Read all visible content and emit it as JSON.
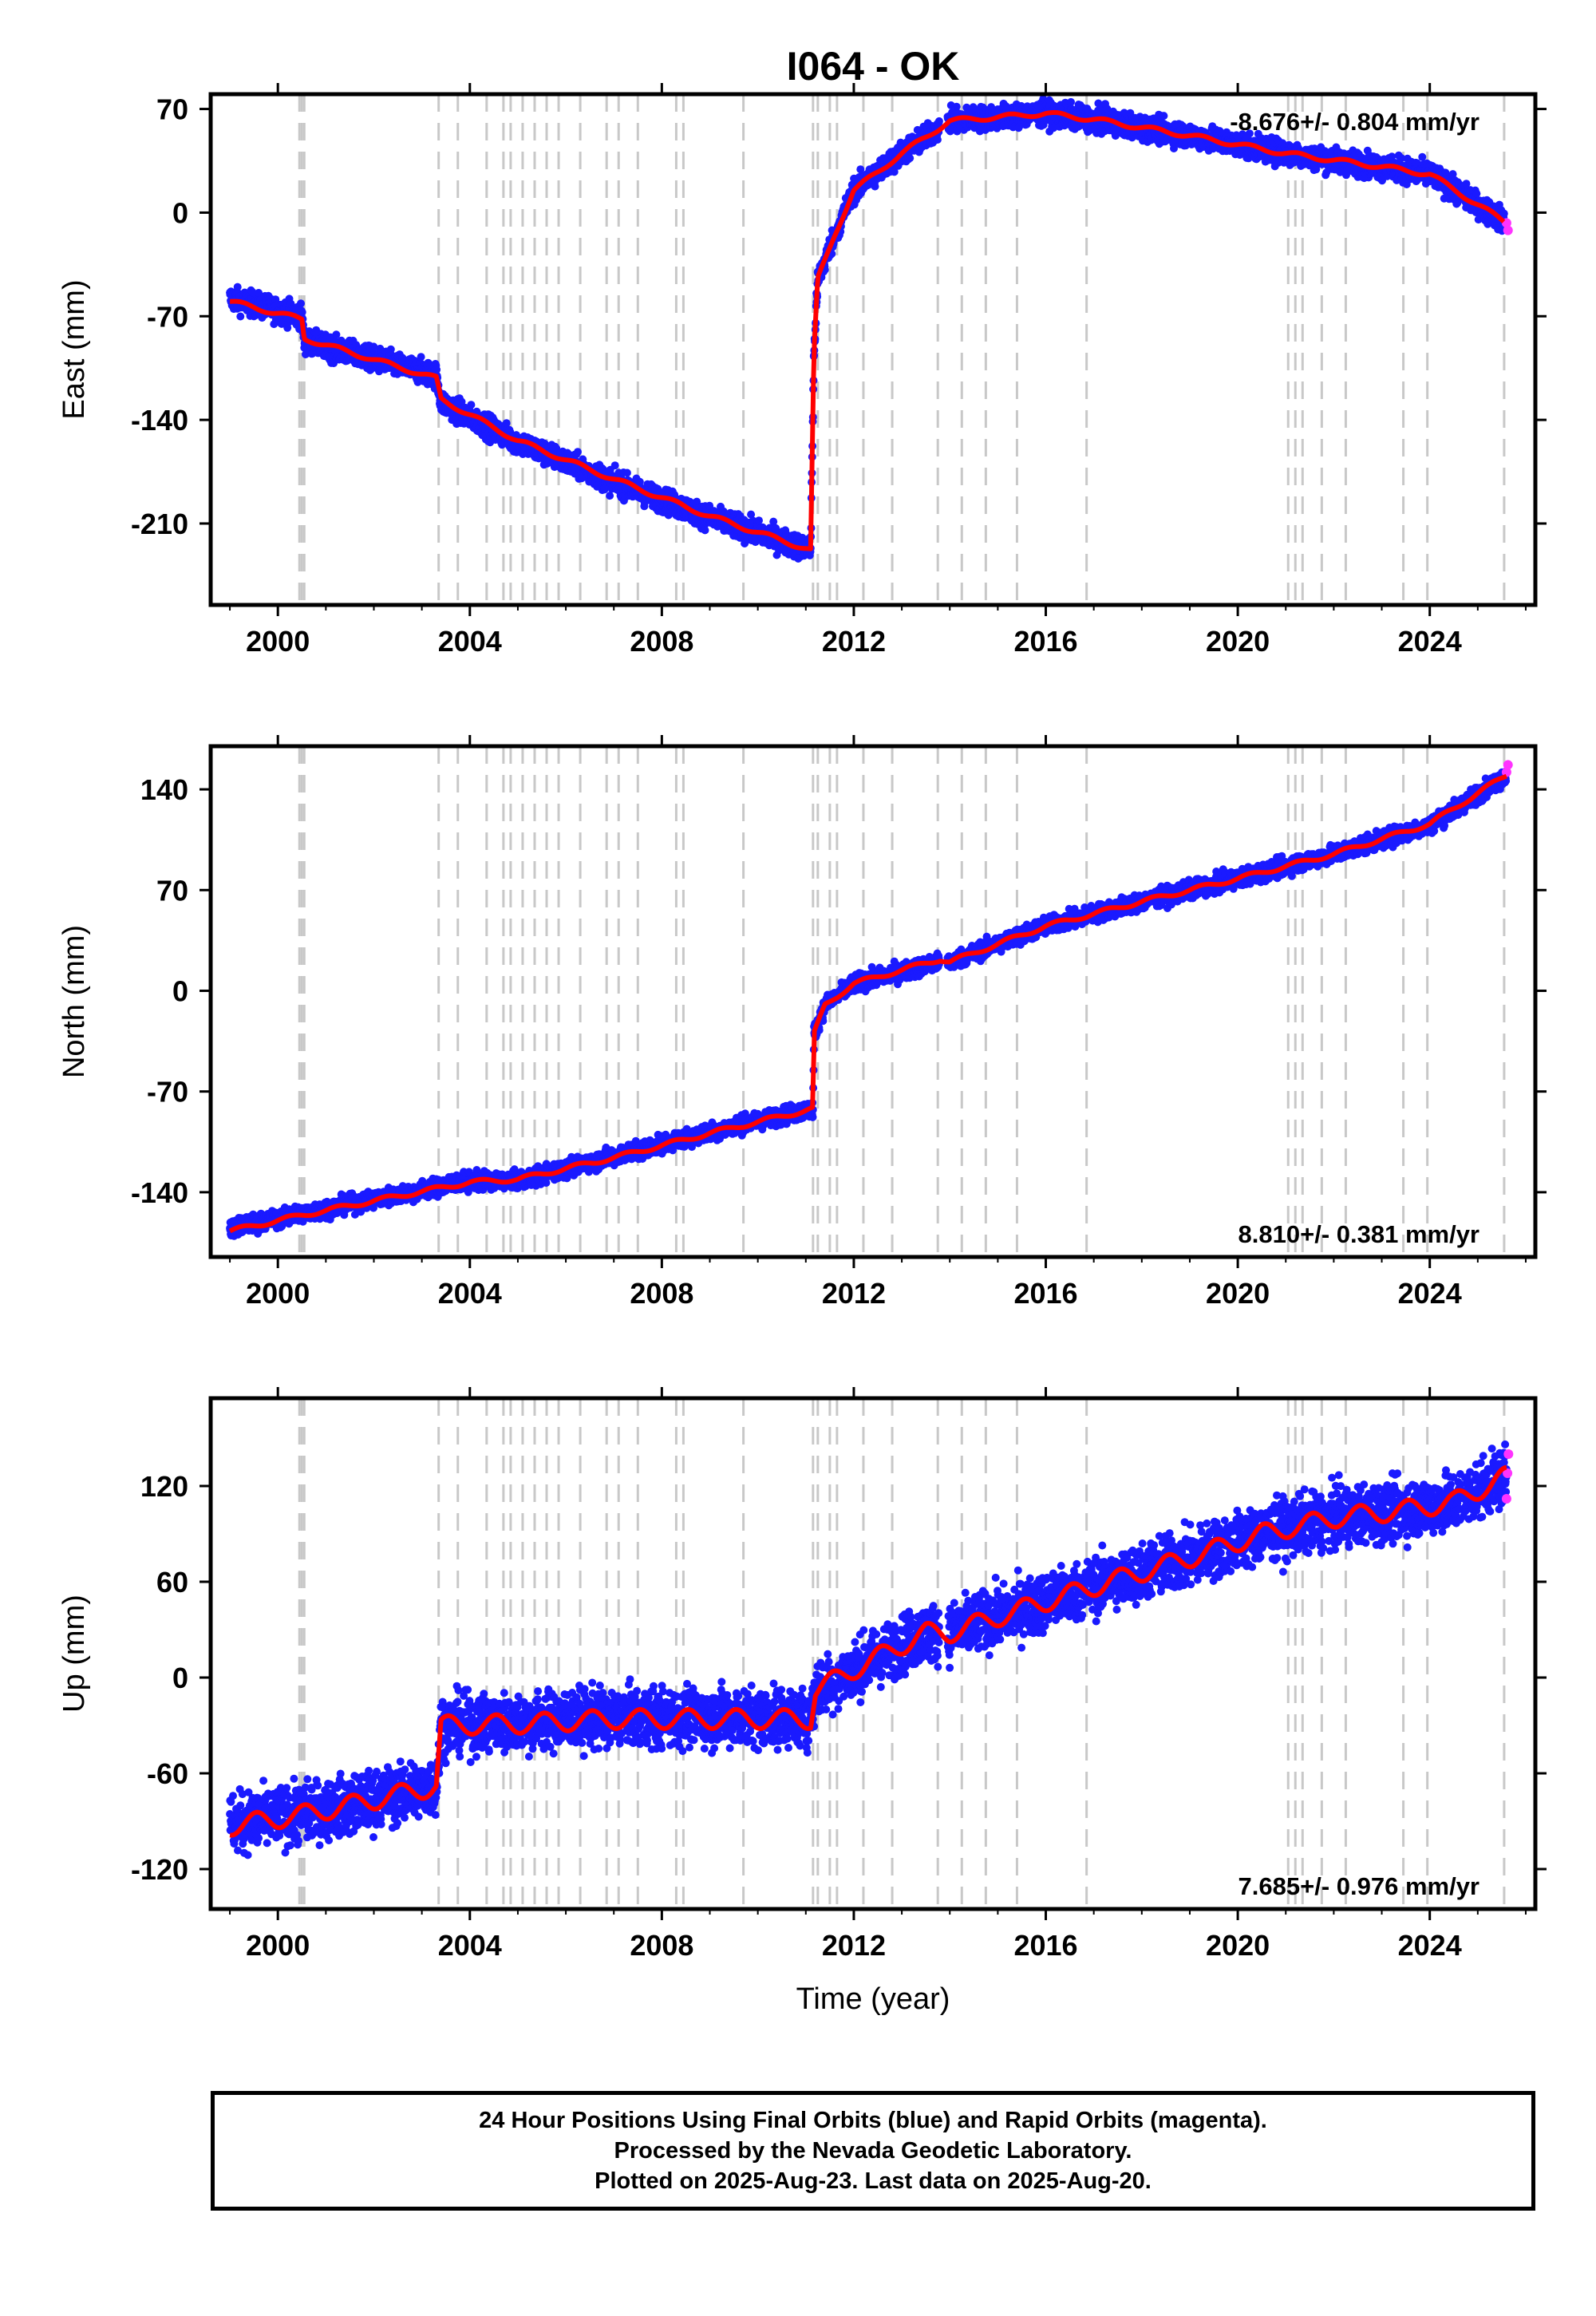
{
  "title": "I064 - OK",
  "xlabel": "Time (year)",
  "colors": {
    "final": "#1a1aff",
    "rapid": "#ff33ff",
    "model": "#ff0000",
    "steps": "#c8c8c8"
  },
  "footer": {
    "line1": "24 Hour Positions Using Final Orbits (blue) and Rapid Orbits (magenta).",
    "line2": "Processed by the Nevada Geodetic Laboratory.",
    "line3": "Plotted on 2025-Aug-23. Last data on 2025-Aug-20."
  },
  "chart_data": [
    {
      "type": "scatter",
      "component": "east",
      "ylabel": "East (mm)",
      "xlim": [
        1998.6,
        2026.2
      ],
      "ylim": [
        -265,
        80
      ],
      "xticks": [
        "2000",
        "2004",
        "2008",
        "2012",
        "2016",
        "2020",
        "2024"
      ],
      "yticks": [
        "70",
        "0",
        "-70",
        "-140",
        "-210"
      ],
      "rate_label": "-8.676+/- 0.804 mm/yr",
      "rate_position": "top-right",
      "step_epochs": [
        2000.45,
        2000.5,
        2000.55,
        2003.35,
        2003.75,
        2004.35,
        2004.7,
        2004.85,
        2005.1,
        2005.35,
        2005.6,
        2005.85,
        2006.3,
        2006.85,
        2007.1,
        2007.5,
        2008.3,
        2008.45,
        2009.7,
        2011.15,
        2011.25,
        2011.5,
        2011.65,
        2012.2,
        2012.8,
        2013.75,
        2014.25,
        2014.75,
        2015.4,
        2016.85,
        2021.05,
        2021.2,
        2021.35,
        2021.75,
        2022.25,
        2023.45,
        2023.95,
        2025.55
      ],
      "series": [
        {
          "name": "Final Orbits",
          "x": [
            1999.0,
            2000.5,
            2000.55,
            2003.3,
            2003.4,
            2005.0,
            2007.0,
            2009.0,
            2011.1,
            2011.17,
            2011.25,
            2011.6,
            2012.0,
            2013.0,
            2014.0,
            2016.0,
            2017.0,
            2019.0,
            2021.0,
            2023.0,
            2024.0,
            2025.55
          ],
          "y": [
            -58,
            -70,
            -87,
            -110,
            -128,
            -155,
            -182,
            -206,
            -228,
            -95,
            -45,
            -15,
            15,
            40,
            62,
            67,
            63,
            52,
            40,
            31,
            26,
            -6
          ]
        },
        {
          "name": "Rapid Orbits",
          "x": [
            2025.6,
            2025.63
          ],
          "y": [
            -7,
            -12
          ]
        },
        {
          "name": "Model",
          "x": [
            1999.0,
            2000.5,
            2000.55,
            2003.3,
            2003.4,
            2005.0,
            2007.0,
            2009.0,
            2011.1,
            2011.17,
            2011.25,
            2011.6,
            2012.0,
            2013.0,
            2014.0,
            2016.0,
            2017.0,
            2019.0,
            2021.0,
            2023.0,
            2024.0,
            2025.55
          ],
          "y": [
            -60,
            -72,
            -85,
            -112,
            -126,
            -154,
            -180,
            -205,
            -228,
            -95,
            -45,
            -15,
            15,
            40,
            62,
            67,
            63,
            52,
            40,
            31,
            26,
            -6
          ]
        }
      ]
    },
    {
      "type": "scatter",
      "component": "north",
      "ylabel": "North (mm)",
      "xlim": [
        1998.6,
        2026.2
      ],
      "ylim": [
        -185,
        170
      ],
      "xticks": [
        "2000",
        "2004",
        "2008",
        "2012",
        "2016",
        "2020",
        "2024"
      ],
      "yticks": [
        "140",
        "70",
        "0",
        "-70",
        "-140"
      ],
      "rate_label": "8.810+/- 0.381 mm/yr",
      "rate_position": "bottom-right",
      "step_epochs": [
        2000.45,
        2000.5,
        2000.55,
        2003.35,
        2003.75,
        2004.35,
        2004.7,
        2004.85,
        2005.1,
        2005.35,
        2005.6,
        2005.85,
        2006.3,
        2006.85,
        2007.1,
        2007.5,
        2008.3,
        2008.45,
        2009.7,
        2011.15,
        2011.25,
        2011.5,
        2011.65,
        2012.2,
        2012.8,
        2013.75,
        2014.25,
        2014.75,
        2015.4,
        2016.85,
        2021.05,
        2021.2,
        2021.35,
        2021.75,
        2022.25,
        2023.45,
        2023.95,
        2025.55
      ],
      "series": [
        {
          "name": "Final Orbits",
          "x": [
            1999.0,
            2000.5,
            2002.0,
            2004.0,
            2005.0,
            2007.0,
            2009.0,
            2011.15,
            2011.17,
            2011.4,
            2012.0,
            2013.8,
            2014.0,
            2016.0,
            2018.0,
            2020.0,
            2022.0,
            2024.0,
            2025.6
          ],
          "y": [
            -165,
            -155,
            -145,
            -132,
            -132,
            -115,
            -98,
            -82,
            -30,
            -10,
            5,
            20,
            20,
            45,
            62,
            78,
            95,
            115,
            150
          ]
        },
        {
          "name": "Rapid Orbits",
          "x": [
            2025.6,
            2025.63
          ],
          "y": [
            152,
            157
          ]
        },
        {
          "name": "Model",
          "x": [
            1999.0,
            2000.5,
            2002.0,
            2004.0,
            2005.0,
            2007.0,
            2009.0,
            2011.15,
            2011.17,
            2011.4,
            2012.0,
            2013.8,
            2014.0,
            2016.0,
            2018.0,
            2020.0,
            2022.0,
            2024.0,
            2025.6
          ],
          "y": [
            -167,
            -156,
            -146,
            -133,
            -131,
            -116,
            -99,
            -82,
            -30,
            -10,
            5,
            22,
            20,
            45,
            62,
            78,
            95,
            116,
            150
          ]
        }
      ]
    },
    {
      "type": "scatter",
      "component": "up",
      "ylabel": "Up (mm)",
      "xlim": [
        1998.6,
        2026.2
      ],
      "ylim": [
        -145,
        175
      ],
      "xticks": [
        "2000",
        "2004",
        "2008",
        "2012",
        "2016",
        "2020",
        "2024"
      ],
      "yticks": [
        "120",
        "60",
        "0",
        "-60",
        "-120"
      ],
      "rate_label": "7.685+/- 0.976 mm/yr",
      "rate_position": "bottom-right",
      "step_epochs": [
        2000.45,
        2000.5,
        2000.55,
        2003.35,
        2003.75,
        2004.35,
        2004.7,
        2004.85,
        2005.1,
        2005.35,
        2005.6,
        2005.85,
        2006.3,
        2006.85,
        2007.1,
        2007.5,
        2008.3,
        2008.45,
        2009.7,
        2011.15,
        2011.25,
        2011.5,
        2011.65,
        2012.2,
        2012.8,
        2013.75,
        2014.25,
        2014.75,
        2015.4,
        2016.85,
        2021.05,
        2021.2,
        2021.35,
        2021.75,
        2022.25,
        2023.45,
        2023.95,
        2025.55
      ],
      "series": [
        {
          "name": "Final Orbits",
          "x": [
            1999.0,
            2000.5,
            2001.5,
            2003.3,
            2003.4,
            2005.0,
            2007.0,
            2009.0,
            2011.1,
            2011.2,
            2012.0,
            2013.5,
            2014.0,
            2015.0,
            2017.0,
            2019.0,
            2020.5,
            2022.0,
            2023.5,
            2024.5,
            2025.6
          ],
          "y": [
            -92,
            -85,
            -80,
            -68,
            -30,
            -28,
            -25,
            -25,
            -25,
            -8,
            5,
            28,
            28,
            38,
            57,
            75,
            90,
            100,
            105,
            110,
            126
          ]
        },
        {
          "name": "Rapid Orbits",
          "x": [
            2025.6,
            2025.62,
            2025.64
          ],
          "y": [
            112,
            128,
            140
          ]
        },
        {
          "name": "Model",
          "x": [
            1999.0,
            2000.5,
            2001.5,
            2003.3,
            2003.4,
            2005.0,
            2007.0,
            2009.0,
            2011.1,
            2011.2,
            2012.0,
            2013.5,
            2014.0,
            2015.0,
            2017.0,
            2019.0,
            2020.5,
            2022.0,
            2023.5,
            2024.5,
            2025.6
          ],
          "y": [
            -93,
            -86,
            -80,
            -68,
            -30,
            -29,
            -26,
            -26,
            -26,
            -8,
            5,
            28,
            28,
            38,
            57,
            75,
            90,
            100,
            105,
            110,
            126
          ]
        }
      ]
    }
  ]
}
